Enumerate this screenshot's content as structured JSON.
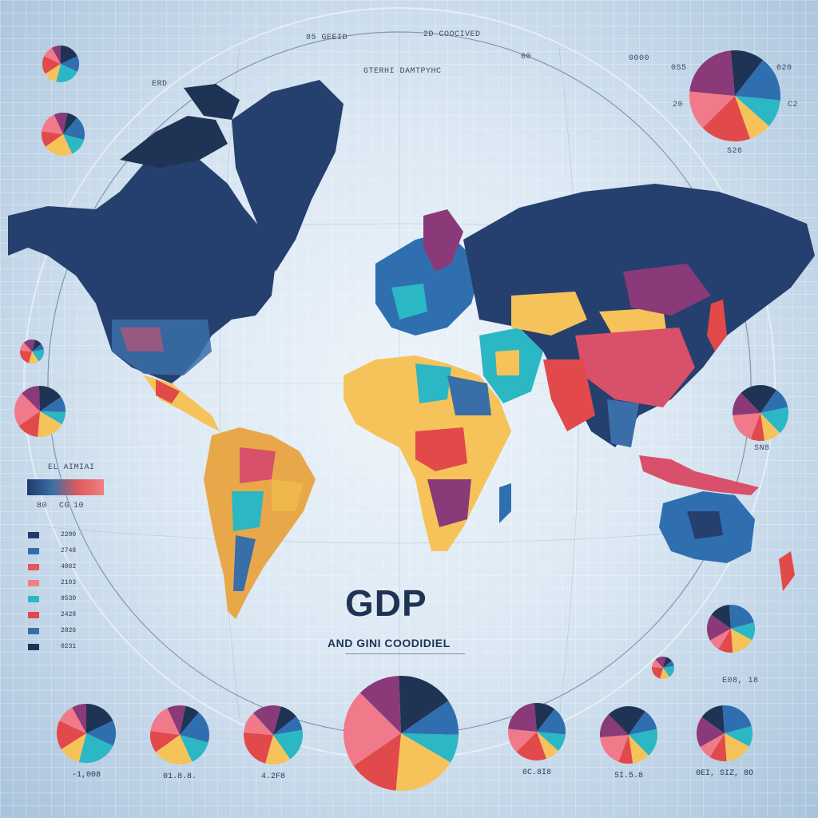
{
  "title": "GDP",
  "subtitle": "AND GINI COODIDIEL",
  "small_labels": {
    "top_left": "85 GEEID",
    "top_mid": "2D COOCIVED",
    "top_right_code": "00",
    "map_caption": "GTERHI DAMTPYHC",
    "pie_tr_top": "0000",
    "pie_tr_left": "0S5",
    "pie_tr_right": "020",
    "pie_tr_left2": "20",
    "pie_tr_right2": "C2",
    "pie_tr_value": "S26",
    "left_code": "ERD",
    "right_code": "SN8",
    "legend_range_left": "80",
    "legend_range_mid": "CG",
    "legend_range_right": "10",
    "legend_heading": "EL AIMIAI",
    "right_lower_value": "E08, 18"
  },
  "legend_values": [
    "2200",
    "2748",
    "4082",
    "2103",
    "9530",
    "2428",
    "2826",
    "0231"
  ],
  "colors": {
    "navy": "#1f3354",
    "blue": "#2f6fb0",
    "teal": "#2bb7c4",
    "yellow": "#f6c35a",
    "red": "#e2494b",
    "pink": "#f07a8a",
    "purple": "#8a3a78"
  },
  "bottom_pies": [
    {
      "label": "-1,008"
    },
    {
      "label": "01.8.8."
    },
    {
      "label": "4.2F8"
    },
    {
      "label": ""
    },
    {
      "label": "6C.8I8"
    },
    {
      "label": "SI.5.8"
    },
    {
      "label": "0EI, SIZ, 8O"
    }
  ]
}
